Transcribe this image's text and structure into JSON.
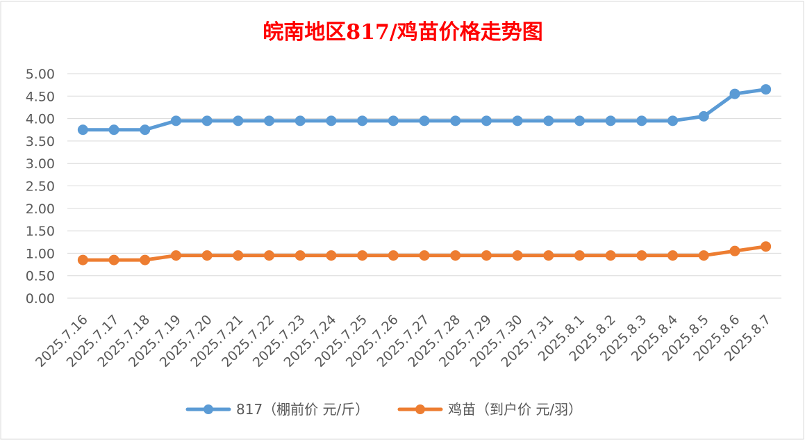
{
  "chart_data": {
    "type": "line",
    "title": "皖南地区817/鸡苗价格走势图",
    "title_color": "#ff0000",
    "x": [
      "2025.7.16",
      "2025.7.17",
      "2025.7.18",
      "2025.7.19",
      "2025.7.20",
      "2025.7.21",
      "2025.7.22",
      "2025.7.23",
      "2025.7.24",
      "2025.7.25",
      "2025.7.26",
      "2025.7.27",
      "2025.7.28",
      "2025.7.29",
      "2025.7.30",
      "2025.7.31",
      "2025.8.1",
      "2025.8.2",
      "2025.8.3",
      "2025.8.4",
      "2025.8.5",
      "2025.8.6",
      "2025.8.7"
    ],
    "y_ticks": [
      "0.00",
      "0.50",
      "1.00",
      "1.50",
      "2.00",
      "2.50",
      "3.00",
      "3.50",
      "4.00",
      "4.50",
      "5.00"
    ],
    "ylim": [
      0,
      5
    ],
    "grid": true,
    "legend_position": "bottom",
    "series": [
      {
        "name": "817（棚前价 元/斤）",
        "color": "#5b9bd5",
        "values": [
          3.75,
          3.75,
          3.75,
          3.95,
          3.95,
          3.95,
          3.95,
          3.95,
          3.95,
          3.95,
          3.95,
          3.95,
          3.95,
          3.95,
          3.95,
          3.95,
          3.95,
          3.95,
          3.95,
          3.95,
          4.05,
          4.55,
          4.65
        ]
      },
      {
        "name": "鸡苗（到户价 元/羽）",
        "color": "#ed7d31",
        "values": [
          0.85,
          0.85,
          0.85,
          0.95,
          0.95,
          0.95,
          0.95,
          0.95,
          0.95,
          0.95,
          0.95,
          0.95,
          0.95,
          0.95,
          0.95,
          0.95,
          0.95,
          0.95,
          0.95,
          0.95,
          0.95,
          1.05,
          1.15
        ]
      }
    ]
  }
}
